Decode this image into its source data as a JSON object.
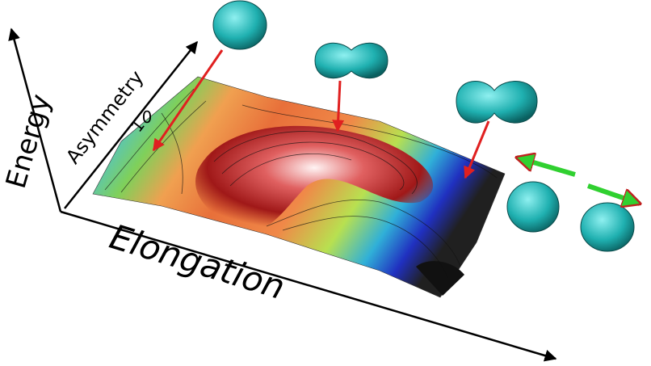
{
  "axes": {
    "energy": "Energy",
    "asymmetry": "Asymmetry",
    "elongation": "Elongation"
  },
  "asymmetry_ticks": [
    1,
    0
  ]
}
